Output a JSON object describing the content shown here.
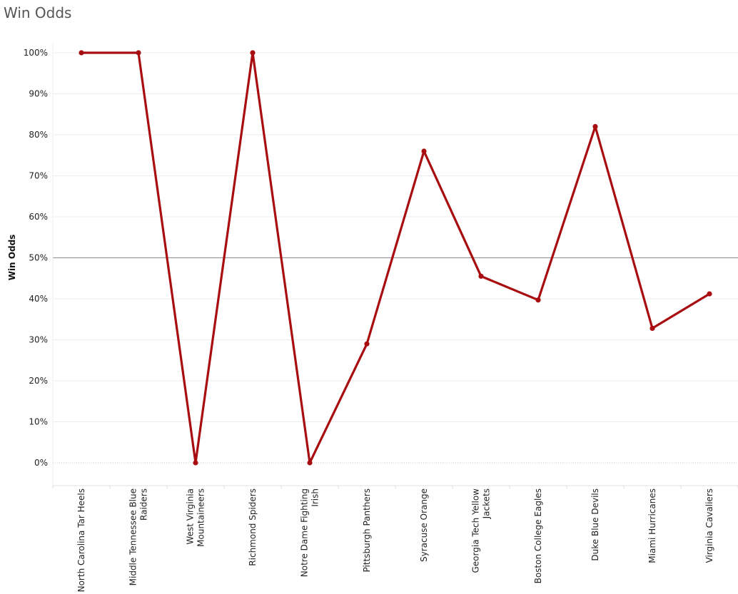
{
  "title": "Win Odds",
  "chart_data": {
    "type": "line",
    "title": "Win Odds",
    "xlabel": "",
    "ylabel": "Win Odds",
    "ylim": [
      -5,
      105
    ],
    "y_ticks": [
      "0%",
      "10%",
      "20%",
      "30%",
      "40%",
      "50%",
      "60%",
      "70%",
      "80%",
      "90%",
      "100%"
    ],
    "y_tick_values": [
      0,
      10,
      20,
      30,
      40,
      50,
      60,
      70,
      80,
      90,
      100
    ],
    "reference_line": 50,
    "grid": true,
    "line_color": "#a80d10",
    "categories": [
      [
        "North Carolina Tar Heels"
      ],
      [
        "Middle Tennessee Blue",
        "Raiders"
      ],
      [
        "West Virginia",
        "Mountaineers"
      ],
      [
        "Richmond Spiders"
      ],
      [
        "Notre Dame Fighting",
        "Irish"
      ],
      [
        "Pittsburgh Panthers"
      ],
      [
        "Syracuse Orange"
      ],
      [
        "Georgia Tech Yellow",
        "Jackets"
      ],
      [
        "Boston College Eagles"
      ],
      [
        "Duke Blue Devils"
      ],
      [
        "Miami Hurricanes"
      ],
      [
        "Virginia Cavaliers"
      ]
    ],
    "values": [
      100,
      100,
      0,
      100,
      0,
      29,
      76,
      45.5,
      39.7,
      82,
      32.8,
      41.2
    ]
  }
}
